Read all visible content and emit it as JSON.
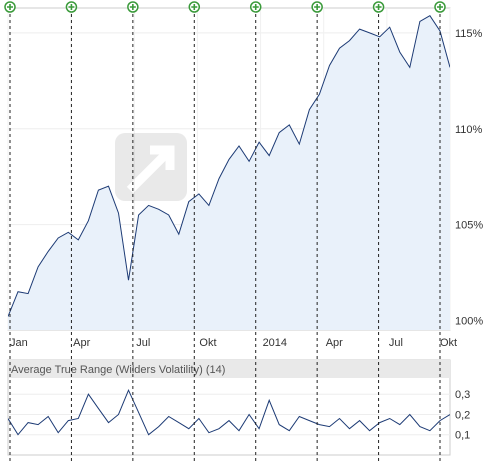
{
  "chart_data": [
    {
      "type": "area",
      "title": "",
      "xlabel": "",
      "ylabel": "",
      "x_ticks": [
        "Jan",
        "Apr",
        "Jul",
        "Okt",
        "2014",
        "Apr",
        "Jul",
        "Okt"
      ],
      "y_ticks": [
        "100%",
        "105%",
        "110%",
        "115%"
      ],
      "ylim": [
        99.5,
        116.3
      ],
      "grid": true,
      "watermark": "OnVista",
      "event_marker_count": 8,
      "series": [
        {
          "x": [
            0,
            0.5,
            1,
            1.5,
            2,
            2.5,
            3,
            3.5,
            4,
            4.5,
            5,
            5.5,
            6,
            6.5,
            7,
            7.5,
            8,
            8.5,
            9,
            9.5,
            10,
            10.5,
            11,
            11.5,
            12,
            12.5,
            13,
            13.5,
            14,
            14.5,
            15,
            15.5,
            16,
            16.5,
            17,
            17.5,
            18,
            18.5,
            19,
            19.5,
            20,
            20.5,
            21,
            21.5,
            22
          ],
          "values": [
            100.2,
            101.5,
            101.4,
            102.8,
            103.6,
            104.3,
            104.6,
            104.2,
            105.2,
            106.8,
            107.0,
            105.6,
            102.1,
            105.5,
            106.0,
            105.8,
            105.5,
            104.5,
            106.2,
            106.6,
            106.0,
            107.4,
            108.4,
            109.1,
            108.3,
            109.3,
            108.6,
            109.8,
            110.2,
            109.2,
            111.0,
            111.8,
            113.3,
            114.2,
            114.6,
            115.2,
            115.0,
            114.8,
            115.3,
            114.0,
            113.2,
            115.6,
            115.9,
            115.1,
            113.2
          ]
        }
      ]
    },
    {
      "type": "line",
      "title": "Average True Range (Wilders Volatility) (14)",
      "xlabel": "",
      "ylabel": "",
      "y_ticks": [
        "0,1",
        "0,2",
        "0,3"
      ],
      "ylim": [
        0.0,
        0.38
      ],
      "series": [
        {
          "x": [
            0,
            0.5,
            1,
            1.5,
            2,
            2.5,
            3,
            3.5,
            4,
            4.5,
            5,
            5.5,
            6,
            6.5,
            7,
            7.5,
            8,
            8.5,
            9,
            9.5,
            10,
            10.5,
            11,
            11.5,
            12,
            12.5,
            13,
            13.5,
            14,
            14.5,
            15,
            15.5,
            16,
            16.5,
            17,
            17.5,
            18,
            18.5,
            19,
            19.5,
            20,
            20.5,
            21,
            21.5,
            22
          ],
          "values": [
            0.18,
            0.1,
            0.16,
            0.15,
            0.19,
            0.11,
            0.17,
            0.18,
            0.3,
            0.23,
            0.16,
            0.2,
            0.32,
            0.21,
            0.1,
            0.14,
            0.19,
            0.16,
            0.13,
            0.18,
            0.11,
            0.13,
            0.17,
            0.12,
            0.2,
            0.13,
            0.27,
            0.15,
            0.12,
            0.19,
            0.17,
            0.15,
            0.14,
            0.18,
            0.13,
            0.17,
            0.12,
            0.16,
            0.18,
            0.15,
            0.2,
            0.14,
            0.12,
            0.17,
            0.2
          ]
        }
      ]
    }
  ]
}
